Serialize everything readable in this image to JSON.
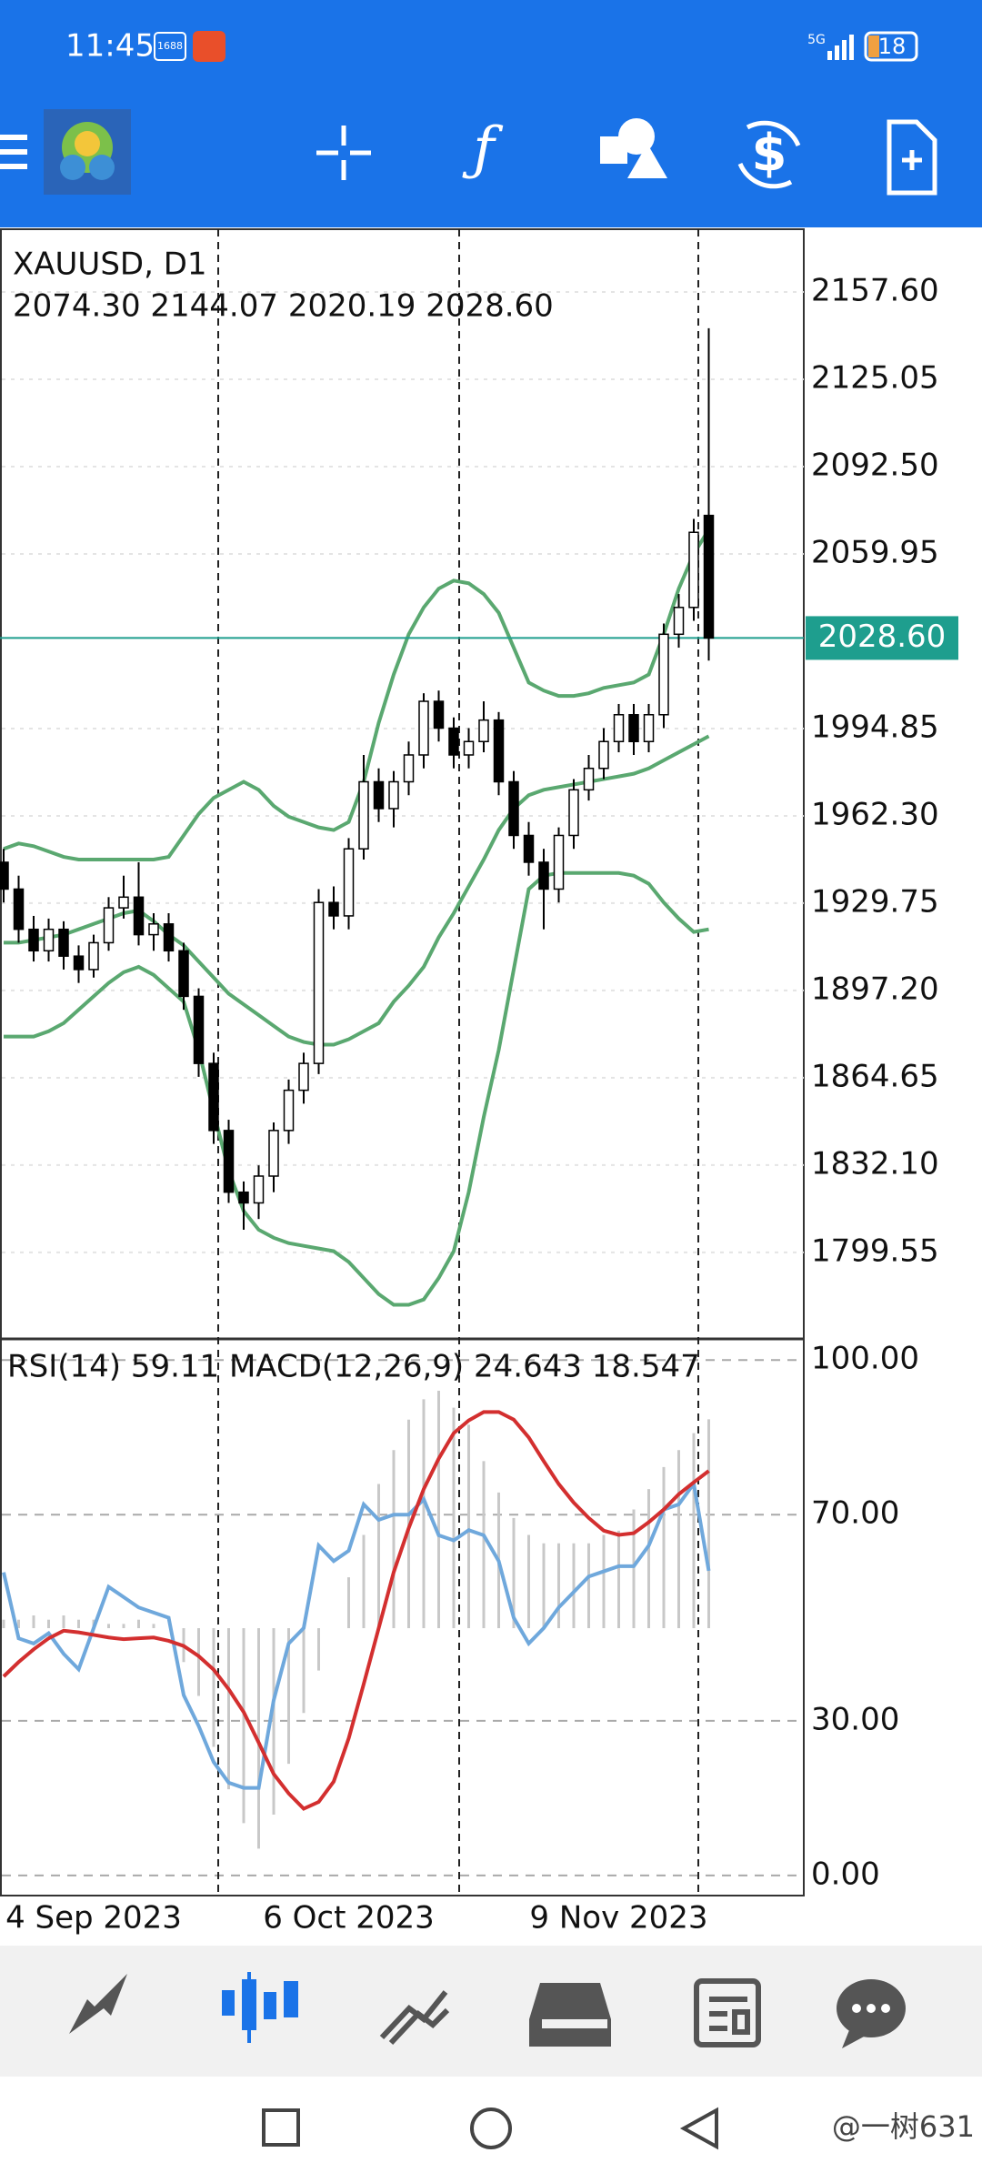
{
  "status_bar": {
    "time": "11:45",
    "badge": "1688",
    "network": "5G",
    "battery": "18"
  },
  "chart_data": {
    "type": "candlestick",
    "title": "XAUUSD, D1",
    "ohlc_text": "2074.30 2144.07 2020.19 2028.60",
    "categories": [
      null,
      null,
      null,
      null,
      null,
      null,
      "4 Sep 2023",
      null,
      null,
      null,
      null,
      null,
      null,
      null,
      null,
      null,
      null,
      null,
      null,
      null,
      null,
      null,
      null,
      "6 Oct 2023",
      null,
      null,
      null,
      null,
      null,
      null,
      null,
      null,
      null,
      null,
      null,
      null,
      null,
      null,
      null,
      null,
      null,
      "9 Nov 2023",
      null,
      null,
      null,
      null,
      null,
      null
    ],
    "candles": [
      [
        1945,
        1950,
        1930,
        1935
      ],
      [
        1935,
        1940,
        1915,
        1920
      ],
      [
        1920,
        1925,
        1908,
        1912
      ],
      [
        1912,
        1924,
        1908,
        1920
      ],
      [
        1920,
        1923,
        1905,
        1910
      ],
      [
        1910,
        1914,
        1900,
        1905
      ],
      [
        1905,
        1918,
        1902,
        1915
      ],
      [
        1915,
        1932,
        1912,
        1928
      ],
      [
        1928,
        1940,
        1924,
        1932
      ],
      [
        1932,
        1945,
        1914,
        1918
      ],
      [
        1918,
        1926,
        1912,
        1922
      ],
      [
        1922,
        1926,
        1908,
        1912
      ],
      [
        1912,
        1915,
        1890,
        1895
      ],
      [
        1895,
        1898,
        1865,
        1870
      ],
      [
        1870,
        1874,
        1840,
        1845
      ],
      [
        1845,
        1849,
        1818,
        1822
      ],
      [
        1822,
        1826,
        1808,
        1818
      ],
      [
        1818,
        1832,
        1812,
        1828
      ],
      [
        1828,
        1848,
        1822,
        1845
      ],
      [
        1845,
        1864,
        1840,
        1860
      ],
      [
        1860,
        1874,
        1855,
        1870
      ],
      [
        1870,
        1935,
        1866,
        1930
      ],
      [
        1930,
        1936,
        1920,
        1925
      ],
      [
        1925,
        1954,
        1920,
        1950
      ],
      [
        1950,
        1985,
        1946,
        1975
      ],
      [
        1975,
        1980,
        1960,
        1965
      ],
      [
        1965,
        1979,
        1958,
        1975
      ],
      [
        1975,
        1990,
        1970,
        1985
      ],
      [
        1985,
        2008,
        1980,
        2005
      ],
      [
        2005,
        2009,
        1990,
        1995
      ],
      [
        1995,
        1999,
        1980,
        1985
      ],
      [
        1985,
        1995,
        1980,
        1990
      ],
      [
        1990,
        2005,
        1986,
        1998
      ],
      [
        1998,
        2001,
        1970,
        1975
      ],
      [
        1975,
        1979,
        1950,
        1955
      ],
      [
        1955,
        1960,
        1940,
        1945
      ],
      [
        1945,
        1950,
        1920,
        1935
      ],
      [
        1935,
        1958,
        1930,
        1955
      ],
      [
        1955,
        1976,
        1950,
        1972
      ],
      [
        1972,
        1985,
        1968,
        1980
      ],
      [
        1980,
        1995,
        1976,
        1990
      ],
      [
        1990,
        2004,
        1986,
        2000
      ],
      [
        2000,
        2004,
        1985,
        1990
      ],
      [
        1990,
        2004,
        1986,
        2000
      ],
      [
        2000,
        2034,
        1995,
        2030
      ],
      [
        2030,
        2045,
        2025,
        2040
      ],
      [
        2040,
        2073,
        2035,
        2068
      ],
      [
        2074.3,
        2144.07,
        2020.19,
        2028.6
      ]
    ],
    "up_color": "#ffffff",
    "down_color": "#000000",
    "series": [
      {
        "color": "#5aa870",
        "values": [
          1950,
          1952,
          1951,
          1949,
          1947,
          1946,
          1946,
          1946,
          1946,
          1946,
          1946,
          1947,
          1955,
          1963,
          1969,
          1972,
          1975,
          1972,
          1966,
          1962,
          1960,
          1958,
          1957,
          1960,
          1975,
          1997,
          2015,
          2030,
          2040,
          2047,
          2050,
          2049,
          2045,
          2038,
          2025,
          2012,
          2009,
          2007,
          2007,
          2008,
          2010,
          2011,
          2012,
          2015,
          2030,
          2047,
          2060,
          2069
        ]
      },
      {
        "color": "#5aa870",
        "values": [
          1915,
          1915,
          1916,
          1917,
          1918,
          1920,
          1922,
          1924,
          1926,
          1927,
          1923,
          1918,
          1914,
          1908,
          1902,
          1896,
          1892,
          1888,
          1884,
          1880,
          1878,
          1877,
          1877,
          1879,
          1882,
          1885,
          1893,
          1899,
          1906,
          1917,
          1926,
          1936,
          1946,
          1957,
          1965,
          1970,
          1972,
          1973,
          1974,
          1975,
          1976,
          1977,
          1978,
          1980,
          1983,
          1986,
          1989,
          1992
        ]
      },
      {
        "color": "#5aa870",
        "values": [
          1880,
          1880,
          1880,
          1882,
          1885,
          1890,
          1895,
          1900,
          1904,
          1906,
          1903,
          1898,
          1893,
          1875,
          1852,
          1830,
          1815,
          1808,
          1805,
          1803,
          1802,
          1801,
          1800,
          1796,
          1790,
          1784,
          1780,
          1780,
          1782,
          1790,
          1800,
          1822,
          1850,
          1875,
          1905,
          1935,
          1940,
          1941,
          1941,
          1941,
          1941,
          1941,
          1940,
          1937,
          1930,
          1924,
          1919,
          1920
        ]
      }
    ],
    "last_price": {
      "value": 2028.6,
      "label": "2028.60",
      "color": "#1e9e8e"
    },
    "ylim": [
      1767.3,
      2181.0
    ],
    "yticks": [
      {
        "value": 2157.6,
        "label": "2157.60"
      },
      2125.05,
      {
        "value": 2092.5,
        "label": "2092.50"
      },
      2059.95,
      1994.85,
      {
        "value": 1962.3,
        "label": "1962.30"
      },
      1929.75,
      {
        "value": 1897.2,
        "label": "1897.20"
      },
      1864.65,
      {
        "value": 1832.1,
        "label": "1832.10"
      },
      1799.55
    ],
    "grid": true
  },
  "indicator": {
    "label": "RSI(14) 59.11 MACD(12,26,9) 24.643 18.547",
    "ylim": [
      -3.9,
      104.1
    ],
    "yticks": [
      {
        "value": 100,
        "label": "100.00"
      },
      {
        "value": 70,
        "label": "70.00"
      },
      {
        "value": 30,
        "label": "30.00"
      },
      {
        "value": 0,
        "label": "0.00"
      }
    ],
    "rsi": {
      "color": "#6fa8dc",
      "values": [
        58.8,
        46,
        45,
        47,
        43,
        40,
        48,
        56,
        54,
        52,
        51,
        50,
        35,
        29,
        22,
        18,
        17,
        17,
        34,
        45,
        48,
        64,
        61,
        63,
        72,
        69,
        70,
        70,
        73,
        66,
        65,
        67,
        66,
        61,
        50,
        45,
        48,
        52,
        55,
        58,
        59,
        60,
        60,
        64,
        71,
        72,
        76,
        59.11
      ]
    },
    "macd_histogram": {
      "color": "#c8c8c8",
      "values": [
        1,
        1,
        1.5,
        1,
        1.5,
        1,
        1,
        0.5,
        0.5,
        1,
        0.5,
        0,
        -4,
        -8,
        -14,
        -19,
        -23,
        -26,
        -22,
        -16,
        -10,
        -5,
        0,
        6,
        11,
        17,
        21,
        24.6,
        27,
        28,
        26,
        24,
        19.7,
        16,
        13,
        11,
        10,
        10,
        10,
        10,
        11,
        11.5,
        14,
        16.4,
        19,
        21,
        23,
        24.643
      ]
    },
    "macd_signal": {
      "color": "#d32f2f",
      "values": [
        -5.7,
        -4,
        -2.5,
        -1.2,
        -0.3,
        -0.5,
        -0.8,
        -1.1,
        -1.3,
        -1.2,
        -1.1,
        -1.5,
        -2.1,
        -3.3,
        -4.9,
        -7.2,
        -9.9,
        -13.5,
        -17.2,
        -19.5,
        -21.3,
        -20.5,
        -18.1,
        -13,
        -6.6,
        0,
        6.6,
        11.8,
        16.4,
        20,
        23,
        24.5,
        25.5,
        25.5,
        24.6,
        22.5,
        19.7,
        17,
        14.8,
        13,
        11.5,
        11,
        11.2,
        12.5,
        14,
        15.8,
        17.2,
        18.547
      ]
    }
  },
  "watermark": "@一树631"
}
